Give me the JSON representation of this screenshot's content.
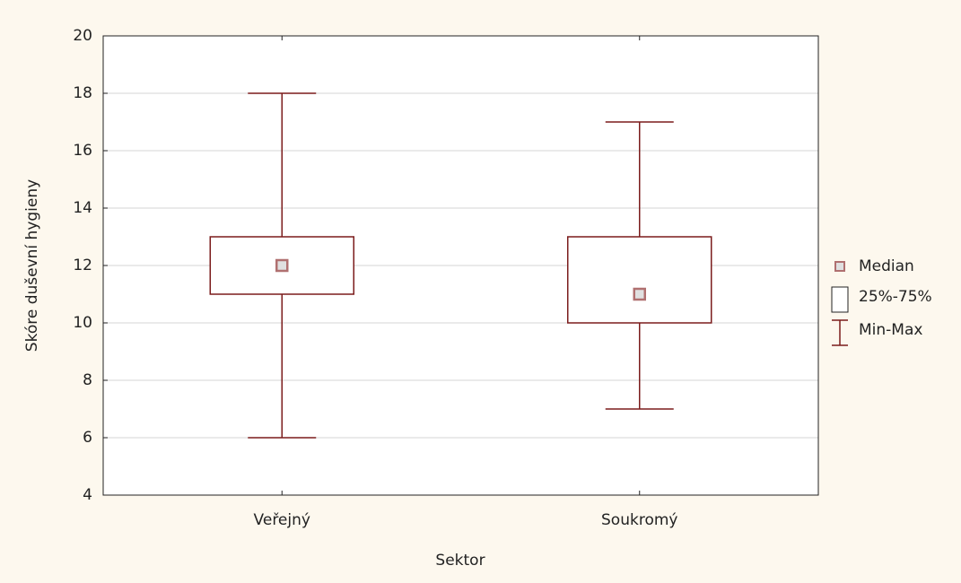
{
  "chart_data": {
    "type": "box",
    "y_label": "Skóre duševní hygieny",
    "x_label": "Sektor",
    "categories": [
      "Veřejný",
      "Soukromý"
    ],
    "min": [
      6,
      7
    ],
    "q1": [
      11,
      10
    ],
    "median": [
      12,
      11
    ],
    "q3": [
      13,
      13
    ],
    "max": [
      18,
      17
    ],
    "color": "#7b1c1c",
    "median_color": "#b07070",
    "ylim": [
      4,
      20
    ],
    "yticks": [
      4,
      6,
      8,
      10,
      12,
      14,
      16,
      18,
      20
    ],
    "grid": true,
    "legend": [
      "Median",
      "25%-75%",
      "Min-Max"
    ],
    "legend_position": "right"
  }
}
